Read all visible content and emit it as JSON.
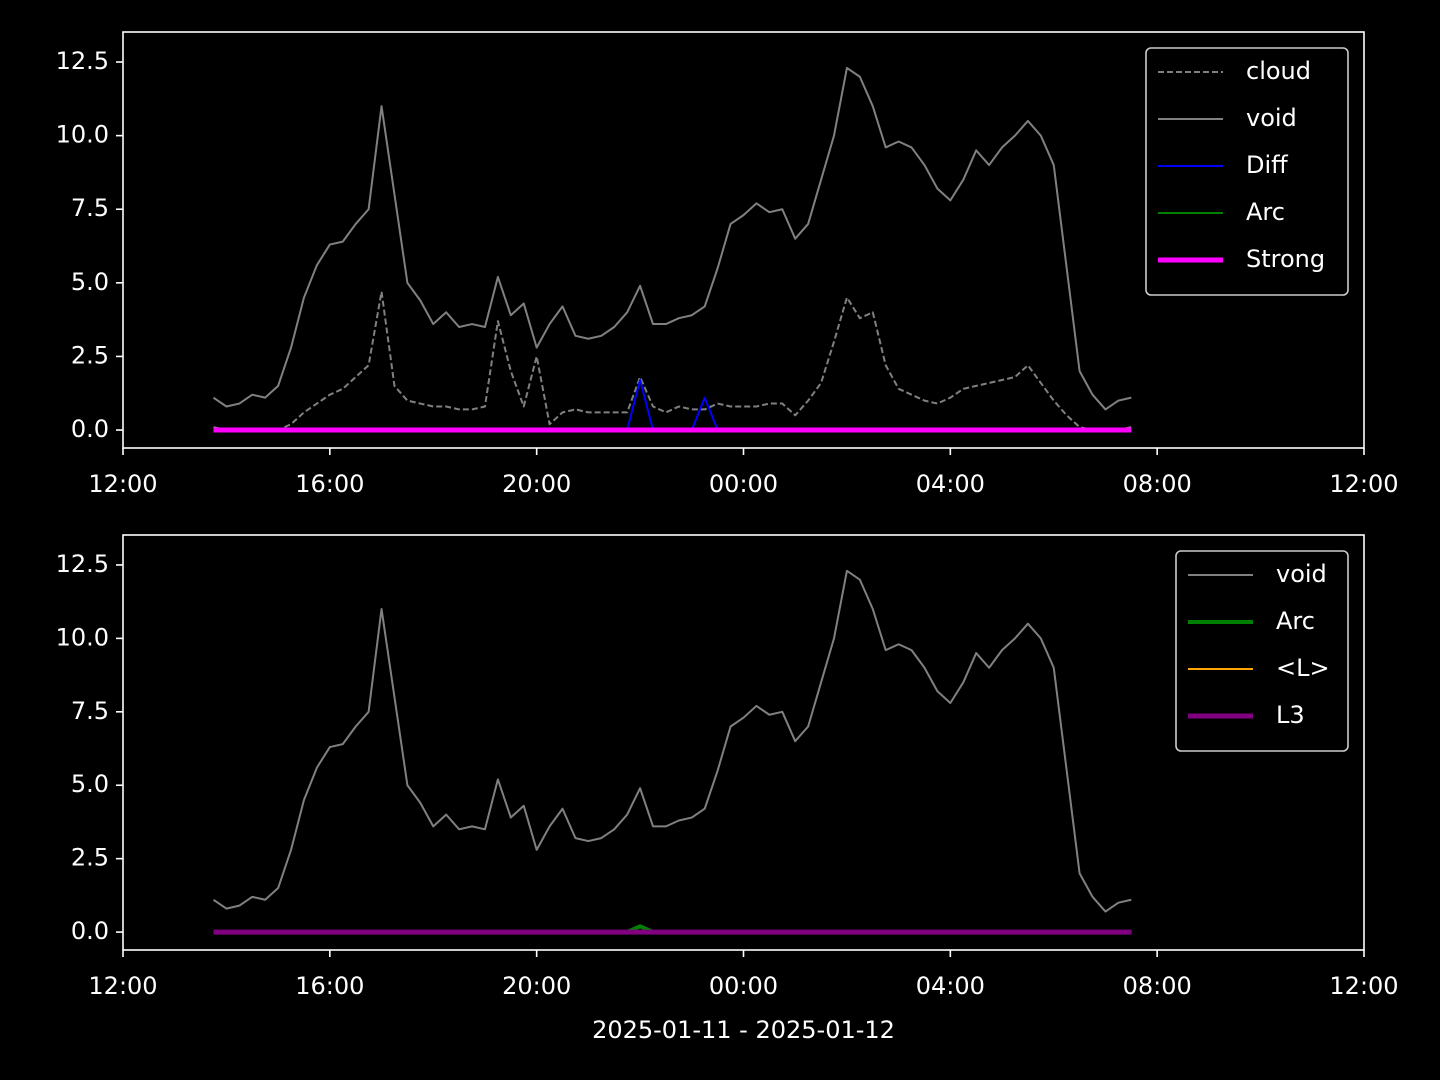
{
  "chart_data": [
    {
      "type": "line",
      "x": [
        "2025-01-11T13:45",
        "2025-01-11T14:00",
        "2025-01-11T14:15",
        "2025-01-11T14:30",
        "2025-01-11T14:45",
        "2025-01-11T15:00",
        "2025-01-11T15:15",
        "2025-01-11T15:30",
        "2025-01-11T15:45",
        "2025-01-11T16:00",
        "2025-01-11T16:15",
        "2025-01-11T16:30",
        "2025-01-11T16:45",
        "2025-01-11T17:00",
        "2025-01-11T17:15",
        "2025-01-11T17:30",
        "2025-01-11T17:45",
        "2025-01-11T18:00",
        "2025-01-11T18:15",
        "2025-01-11T18:30",
        "2025-01-11T18:45",
        "2025-01-11T19:00",
        "2025-01-11T19:15",
        "2025-01-11T19:30",
        "2025-01-11T19:45",
        "2025-01-11T20:00",
        "2025-01-11T20:15",
        "2025-01-11T20:30",
        "2025-01-11T20:45",
        "2025-01-11T21:00",
        "2025-01-11T21:15",
        "2025-01-11T21:30",
        "2025-01-11T21:45",
        "2025-01-11T22:00",
        "2025-01-11T22:15",
        "2025-01-11T22:30",
        "2025-01-11T22:45",
        "2025-01-11T23:00",
        "2025-01-11T23:15",
        "2025-01-11T23:30",
        "2025-01-11T23:45",
        "2025-01-12T00:00",
        "2025-01-12T00:15",
        "2025-01-12T00:30",
        "2025-01-12T00:45",
        "2025-01-12T01:00",
        "2025-01-12T01:15",
        "2025-01-12T01:30",
        "2025-01-12T01:45",
        "2025-01-12T02:00",
        "2025-01-12T02:15",
        "2025-01-12T02:30",
        "2025-01-12T02:45",
        "2025-01-12T03:00",
        "2025-01-12T03:15",
        "2025-01-12T03:30",
        "2025-01-12T03:45",
        "2025-01-12T04:00",
        "2025-01-12T04:15",
        "2025-01-12T04:30",
        "2025-01-12T04:45",
        "2025-01-12T05:00",
        "2025-01-12T05:15",
        "2025-01-12T05:30",
        "2025-01-12T05:45",
        "2025-01-12T06:00",
        "2025-01-12T06:15",
        "2025-01-12T06:30",
        "2025-01-12T06:45",
        "2025-01-12T07:00",
        "2025-01-12T07:15",
        "2025-01-12T07:30"
      ],
      "series": [
        {
          "name": "cloud",
          "color": "#808080",
          "linestyle": "dashed",
          "linewidth": 2,
          "values": [
            0.1,
            0,
            0,
            0,
            0,
            0,
            0.2,
            0.6,
            0.9,
            1.2,
            1.4,
            1.8,
            2.2,
            4.7,
            1.5,
            1.0,
            0.9,
            0.8,
            0.8,
            0.7,
            0.7,
            0.8,
            3.7,
            2.0,
            0.8,
            2.5,
            0.2,
            0.6,
            0.7,
            0.6,
            0.6,
            0.6,
            0.6,
            1.8,
            0.8,
            0.6,
            0.8,
            0.7,
            0.7,
            0.9,
            0.8,
            0.8,
            0.8,
            0.9,
            0.9,
            0.5,
            1.0,
            1.6,
            3.0,
            4.5,
            3.8,
            4.0,
            2.2,
            1.4,
            1.2,
            1.0,
            0.9,
            1.1,
            1.4,
            1.5,
            1.6,
            1.7,
            1.8,
            2.2,
            1.6,
            1.0,
            0.5,
            0.1,
            0,
            0,
            0,
            0.1
          ]
        },
        {
          "name": "void",
          "color": "#808080",
          "linestyle": "solid",
          "linewidth": 2,
          "values": [
            1.1,
            0.8,
            0.9,
            1.2,
            1.1,
            1.5,
            2.8,
            4.5,
            5.6,
            6.3,
            6.4,
            7.0,
            7.5,
            11.0,
            8.0,
            5.0,
            4.4,
            3.6,
            4.0,
            3.5,
            3.6,
            3.5,
            5.2,
            3.9,
            4.3,
            2.8,
            3.6,
            4.2,
            3.2,
            3.1,
            3.2,
            3.5,
            4.0,
            4.9,
            3.6,
            3.6,
            3.8,
            3.9,
            4.2,
            5.5,
            7.0,
            7.3,
            7.7,
            7.4,
            7.5,
            6.5,
            7.0,
            8.5,
            10.0,
            12.3,
            12.0,
            11.0,
            9.6,
            9.8,
            9.6,
            9.0,
            8.2,
            7.8,
            8.5,
            9.5,
            9.0,
            9.6,
            10.0,
            10.5,
            10.0,
            9.0,
            5.5,
            2.0,
            1.2,
            0.7,
            1.0,
            1.1
          ]
        },
        {
          "name": "Diff",
          "color": "#0000ff",
          "linestyle": "solid",
          "linewidth": 2,
          "values": [
            0,
            0,
            0,
            0,
            0,
            0,
            0,
            0,
            0,
            0,
            0,
            0,
            0,
            0,
            0,
            0,
            0,
            0,
            0,
            0,
            0,
            0,
            0,
            0,
            0,
            0,
            0,
            0,
            0,
            0,
            0,
            0,
            0,
            1.7,
            0,
            0,
            0,
            0,
            1.1,
            0,
            0,
            0,
            0,
            0,
            0,
            0,
            0,
            0,
            0,
            0,
            0,
            0,
            0,
            0,
            0,
            0,
            0,
            0,
            0,
            0,
            0,
            0,
            0,
            0,
            0,
            0,
            0,
            0,
            0,
            0,
            0,
            0
          ]
        },
        {
          "name": "Arc",
          "color": "#008000",
          "linestyle": "solid",
          "linewidth": 2,
          "values": [
            0,
            0,
            0,
            0,
            0,
            0,
            0,
            0,
            0,
            0,
            0,
            0,
            0,
            0,
            0,
            0,
            0,
            0,
            0,
            0,
            0,
            0,
            0,
            0,
            0,
            0,
            0,
            0,
            0,
            0,
            0,
            0,
            0,
            0,
            0,
            0,
            0,
            0,
            0,
            0,
            0,
            0,
            0,
            0,
            0,
            0,
            0,
            0,
            0,
            0,
            0,
            0,
            0,
            0,
            0,
            0,
            0,
            0,
            0,
            0,
            0,
            0,
            0,
            0,
            0,
            0,
            0,
            0,
            0,
            0,
            0,
            0
          ]
        },
        {
          "name": "Strong",
          "color": "#ff00ff",
          "linestyle": "solid",
          "linewidth": 5,
          "values": [
            0,
            0,
            0,
            0,
            0,
            0,
            0,
            0,
            0,
            0,
            0,
            0,
            0,
            0,
            0,
            0,
            0,
            0,
            0,
            0,
            0,
            0,
            0,
            0,
            0,
            0,
            0,
            0,
            0,
            0,
            0,
            0,
            0,
            0,
            0,
            0,
            0,
            0,
            0,
            0,
            0,
            0,
            0,
            0,
            0,
            0,
            0,
            0,
            0,
            0,
            0,
            0,
            0,
            0,
            0,
            0,
            0,
            0,
            0,
            0,
            0,
            0,
            0,
            0,
            0,
            0,
            0,
            0,
            0,
            0,
            0,
            0
          ]
        }
      ],
      "xlim": [
        "2025-01-11T12:00",
        "2025-01-12T12:00"
      ],
      "xticks": [
        {
          "value": "2025-01-11T12:00",
          "label": "12:00"
        },
        {
          "value": "2025-01-11T16:00",
          "label": "16:00"
        },
        {
          "value": "2025-01-11T20:00",
          "label": "20:00"
        },
        {
          "value": "2025-01-12T00:00",
          "label": "00:00"
        },
        {
          "value": "2025-01-12T04:00",
          "label": "04:00"
        },
        {
          "value": "2025-01-12T08:00",
          "label": "08:00"
        },
        {
          "value": "2025-01-12T12:00",
          "label": "12:00"
        }
      ],
      "ylim": [
        -0.61,
        13.52
      ],
      "yticks": [
        {
          "value": 0,
          "label": "0.0"
        },
        {
          "value": 2.5,
          "label": "2.5"
        },
        {
          "value": 5,
          "label": "5.0"
        },
        {
          "value": 7.5,
          "label": "7.5"
        },
        {
          "value": 10,
          "label": "10.0"
        },
        {
          "value": 12.5,
          "label": "12.5"
        }
      ],
      "legend": "upper right"
    },
    {
      "type": "line",
      "x": [
        "2025-01-11T13:45",
        "2025-01-11T14:00",
        "2025-01-11T14:15",
        "2025-01-11T14:30",
        "2025-01-11T14:45",
        "2025-01-11T15:00",
        "2025-01-11T15:15",
        "2025-01-11T15:30",
        "2025-01-11T15:45",
        "2025-01-11T16:00",
        "2025-01-11T16:15",
        "2025-01-11T16:30",
        "2025-01-11T16:45",
        "2025-01-11T17:00",
        "2025-01-11T17:15",
        "2025-01-11T17:30",
        "2025-01-11T17:45",
        "2025-01-11T18:00",
        "2025-01-11T18:15",
        "2025-01-11T18:30",
        "2025-01-11T18:45",
        "2025-01-11T19:00",
        "2025-01-11T19:15",
        "2025-01-11T19:30",
        "2025-01-11T19:45",
        "2025-01-11T20:00",
        "2025-01-11T20:15",
        "2025-01-11T20:30",
        "2025-01-11T20:45",
        "2025-01-11T21:00",
        "2025-01-11T21:15",
        "2025-01-11T21:30",
        "2025-01-11T21:45",
        "2025-01-11T22:00",
        "2025-01-11T22:15",
        "2025-01-11T22:30",
        "2025-01-11T22:45",
        "2025-01-11T23:00",
        "2025-01-11T23:15",
        "2025-01-11T23:30",
        "2025-01-11T23:45",
        "2025-01-12T00:00",
        "2025-01-12T00:15",
        "2025-01-12T00:30",
        "2025-01-12T00:45",
        "2025-01-12T01:00",
        "2025-01-12T01:15",
        "2025-01-12T01:30",
        "2025-01-12T01:45",
        "2025-01-12T02:00",
        "2025-01-12T02:15",
        "2025-01-12T02:30",
        "2025-01-12T02:45",
        "2025-01-12T03:00",
        "2025-01-12T03:15",
        "2025-01-12T03:30",
        "2025-01-12T03:45",
        "2025-01-12T04:00",
        "2025-01-12T04:15",
        "2025-01-12T04:30",
        "2025-01-12T04:45",
        "2025-01-12T05:00",
        "2025-01-12T05:15",
        "2025-01-12T05:30",
        "2025-01-12T05:45",
        "2025-01-12T06:00",
        "2025-01-12T06:15",
        "2025-01-12T06:30",
        "2025-01-12T06:45",
        "2025-01-12T07:00",
        "2025-01-12T07:15",
        "2025-01-12T07:30"
      ],
      "series": [
        {
          "name": "void",
          "color": "#808080",
          "linestyle": "solid",
          "linewidth": 2,
          "values": [
            1.1,
            0.8,
            0.9,
            1.2,
            1.1,
            1.5,
            2.8,
            4.5,
            5.6,
            6.3,
            6.4,
            7.0,
            7.5,
            11.0,
            8.0,
            5.0,
            4.4,
            3.6,
            4.0,
            3.5,
            3.6,
            3.5,
            5.2,
            3.9,
            4.3,
            2.8,
            3.6,
            4.2,
            3.2,
            3.1,
            3.2,
            3.5,
            4.0,
            4.9,
            3.6,
            3.6,
            3.8,
            3.9,
            4.2,
            5.5,
            7.0,
            7.3,
            7.7,
            7.4,
            7.5,
            6.5,
            7.0,
            8.5,
            10.0,
            12.3,
            12.0,
            11.0,
            9.6,
            9.8,
            9.6,
            9.0,
            8.2,
            7.8,
            8.5,
            9.5,
            9.0,
            9.6,
            10.0,
            10.5,
            10.0,
            9.0,
            5.5,
            2.0,
            1.2,
            0.7,
            1.0,
            1.1
          ]
        },
        {
          "name": "Arc",
          "color": "#008000",
          "linestyle": "solid",
          "linewidth": 4,
          "values": [
            0,
            0,
            0,
            0,
            0,
            0,
            0,
            0,
            0,
            0,
            0,
            0,
            0,
            0,
            0,
            0,
            0,
            0,
            0,
            0,
            0,
            0,
            0,
            0,
            0,
            0,
            0,
            0,
            0,
            0,
            0,
            0,
            0,
            0.2,
            0,
            0,
            0,
            0,
            0,
            0,
            0,
            0,
            0,
            0,
            0,
            0,
            0,
            0,
            0,
            0,
            0,
            0,
            0,
            0,
            0,
            0,
            0,
            0,
            0,
            0,
            0,
            0,
            0,
            0,
            0,
            0,
            0,
            0,
            0,
            0,
            0,
            0
          ]
        },
        {
          "name": "<L>",
          "color": "#ffa500",
          "linestyle": "solid",
          "linewidth": 2,
          "values": [
            0,
            0,
            0,
            0,
            0,
            0,
            0,
            0,
            0,
            0,
            0,
            0,
            0,
            0,
            0,
            0,
            0,
            0,
            0,
            0,
            0,
            0,
            0,
            0,
            0,
            0,
            0,
            0,
            0,
            0,
            0,
            0,
            0,
            0,
            0,
            0,
            0,
            0,
            0,
            0,
            0,
            0,
            0,
            0,
            0,
            0,
            0,
            0,
            0,
            0,
            0,
            0,
            0,
            0,
            0,
            0,
            0,
            0,
            0,
            0,
            0,
            0,
            0,
            0,
            0,
            0,
            0,
            0,
            0,
            0,
            0,
            0
          ]
        },
        {
          "name": "L3",
          "color": "#800080",
          "linestyle": "solid",
          "linewidth": 5,
          "values": [
            0,
            0,
            0,
            0,
            0,
            0,
            0,
            0,
            0,
            0,
            0,
            0,
            0,
            0,
            0,
            0,
            0,
            0,
            0,
            0,
            0,
            0,
            0,
            0,
            0,
            0,
            0,
            0,
            0,
            0,
            0,
            0,
            0,
            0,
            0,
            0,
            0,
            0,
            0,
            0,
            0,
            0,
            0,
            0,
            0,
            0,
            0,
            0,
            0,
            0,
            0,
            0,
            0,
            0,
            0,
            0,
            0,
            0,
            0,
            0,
            0,
            0,
            0,
            0,
            0,
            0,
            0,
            0,
            0,
            0,
            0,
            0
          ]
        }
      ],
      "xlim": [
        "2025-01-11T12:00",
        "2025-01-12T12:00"
      ],
      "xticks": [
        {
          "value": "2025-01-11T12:00",
          "label": "12:00"
        },
        {
          "value": "2025-01-11T16:00",
          "label": "16:00"
        },
        {
          "value": "2025-01-11T20:00",
          "label": "20:00"
        },
        {
          "value": "2025-01-12T00:00",
          "label": "00:00"
        },
        {
          "value": "2025-01-12T04:00",
          "label": "04:00"
        },
        {
          "value": "2025-01-12T08:00",
          "label": "08:00"
        },
        {
          "value": "2025-01-12T12:00",
          "label": "12:00"
        }
      ],
      "ylim": [
        -0.61,
        13.52
      ],
      "yticks": [
        {
          "value": 0,
          "label": "0.0"
        },
        {
          "value": 2.5,
          "label": "2.5"
        },
        {
          "value": 5,
          "label": "5.0"
        },
        {
          "value": 7.5,
          "label": "7.5"
        },
        {
          "value": 10,
          "label": "10.0"
        },
        {
          "value": 12.5,
          "label": "12.5"
        }
      ],
      "xlabel": "2025-01-11 - 2025-01-12",
      "legend": "upper right"
    }
  ]
}
